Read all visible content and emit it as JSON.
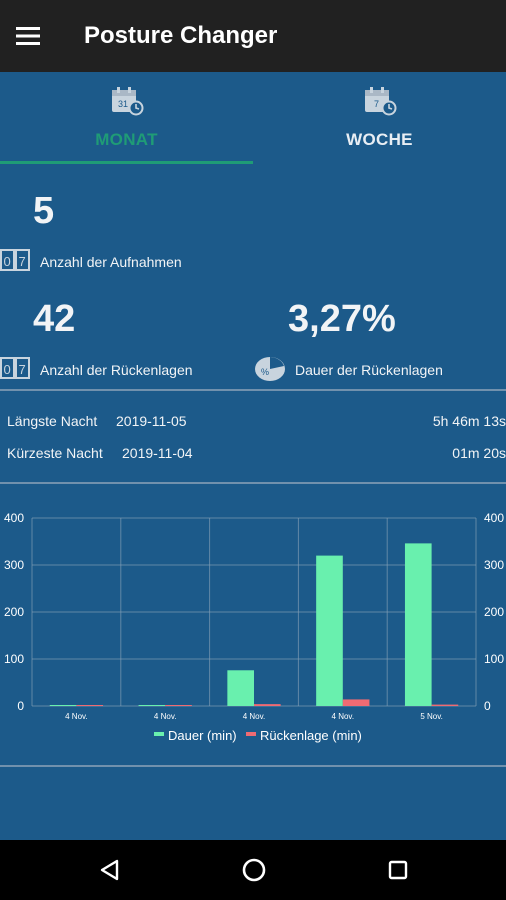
{
  "app": {
    "title": "Posture Changer",
    "menu_icon": "hamburger-menu-icon"
  },
  "tabs": [
    {
      "label": "MONAT",
      "icon": "calendar-month-icon",
      "icon_text": "31",
      "selected": true
    },
    {
      "label": "WOCHE",
      "icon": "calendar-week-icon",
      "icon_text": "7",
      "selected": false
    }
  ],
  "stats": {
    "recordings": {
      "value": "5",
      "label": "Anzahl der Aufnahmen",
      "icon": "counter-icon",
      "icon_text": [
        "0",
        "7"
      ]
    },
    "supine_count": {
      "value": "42",
      "label": "Anzahl der Rückenlagen",
      "icon": "counter-icon",
      "icon_text": [
        "0",
        "7"
      ]
    },
    "supine_duration": {
      "value": "3,27%",
      "label": "Dauer der Rückenlagen",
      "icon": "pie-percent-icon"
    }
  },
  "nights": {
    "longest": {
      "label": "Längste Nacht",
      "date": "2019-11-05",
      "duration": "5h 46m 13s"
    },
    "shortest": {
      "label": "Kürzeste Nacht",
      "date": "2019-11-04",
      "duration": "01m 20s"
    }
  },
  "chart_data": {
    "type": "bar",
    "categories": [
      "4 Nov.",
      "4 Nov.",
      "4 Nov.",
      "4 Nov.",
      "5 Nov."
    ],
    "series": [
      {
        "name": "Dauer (min)",
        "color": "#69f0ae",
        "values": [
          1,
          1,
          76,
          320,
          346
        ]
      },
      {
        "name": "Rückenlage (min)",
        "color": "#ef6b73",
        "values": [
          0,
          0,
          4,
          14,
          3
        ]
      }
    ],
    "ylim": [
      0,
      400
    ],
    "yticks": [
      "0",
      "100",
      "200",
      "300",
      "400"
    ],
    "grid": true,
    "legend": "bottom-center",
    "axes": "left-and-right"
  },
  "navbar": {
    "back_icon": "back-triangle-icon",
    "home_icon": "home-circle-icon",
    "recents_icon": "recents-square-icon"
  }
}
